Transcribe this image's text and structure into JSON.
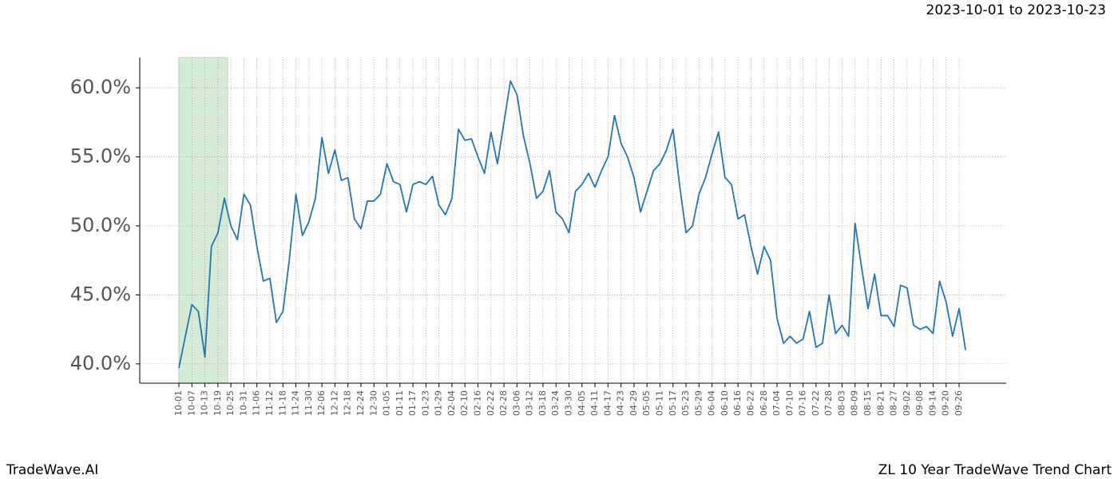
{
  "header": {
    "date_range": "2023-10-01 to 2023-10-23"
  },
  "footer": {
    "brand": "TradeWave.AI",
    "title": "ZL 10 Year TradeWave Trend Chart"
  },
  "chart_data": {
    "type": "line",
    "color": "#1f77b4",
    "grid": true,
    "highlight_range": [
      0,
      8
    ],
    "highlight_color": "#d5ebd5",
    "categories": [
      "10-01",
      null,
      "10-07",
      null,
      "10-13",
      null,
      "10-19",
      null,
      "10-25",
      null,
      "10-31",
      null,
      "11-06",
      null,
      "11-12",
      null,
      "11-18",
      null,
      "11-24",
      null,
      "11-30",
      null,
      "12-06",
      null,
      "12-12",
      null,
      "12-18",
      null,
      "12-24",
      null,
      "12-30",
      null,
      "01-05",
      null,
      "01-11",
      null,
      "01-17",
      null,
      "01-23",
      null,
      "01-29",
      null,
      "02-04",
      null,
      "02-10",
      null,
      "02-16",
      null,
      "02-22",
      null,
      "02-28",
      null,
      "03-06",
      null,
      "03-12",
      null,
      "03-18",
      null,
      "03-24",
      null,
      "03-30",
      null,
      "04-05",
      null,
      "04-11",
      null,
      "04-17",
      null,
      "04-23",
      null,
      "04-29",
      null,
      "05-05",
      null,
      "05-11",
      null,
      "05-17",
      null,
      "05-23",
      null,
      "05-29",
      null,
      "06-04",
      null,
      "06-10",
      null,
      "06-16",
      null,
      "06-22",
      null,
      "06-28",
      null,
      "07-04",
      null,
      "07-10",
      null,
      "07-16",
      null,
      "07-22",
      null,
      "07-28",
      null,
      "08-03",
      null,
      "08-09",
      null,
      "08-15",
      null,
      "08-21",
      null,
      "08-27",
      null,
      "09-02",
      null,
      "09-08",
      null,
      "09-14",
      null,
      "09-20",
      null,
      "09-26",
      null
    ],
    "values": [
      39.7,
      42,
      44.3,
      43.8,
      40.5,
      48.5,
      49.5,
      52,
      50,
      49,
      52.3,
      51.5,
      48.5,
      46,
      46.2,
      43,
      43.8,
      47.6,
      52.3,
      49.3,
      50.3,
      52,
      56.4,
      53.8,
      55.5,
      53.3,
      53.5,
      50.5,
      49.8,
      51.8,
      51.8,
      52.3,
      54.5,
      53.2,
      53,
      51,
      53,
      53.2,
      53,
      53.6,
      51.5,
      50.8,
      52,
      57,
      56.2,
      56.3,
      55,
      53.8,
      56.8,
      54.5,
      57.5,
      60.5,
      59.5,
      56.5,
      54.5,
      52,
      52.5,
      54,
      51,
      50.5,
      49.5,
      52.5,
      53,
      53.8,
      52.8,
      54,
      55,
      58,
      56,
      55,
      53.5,
      51,
      52.5,
      54,
      54.5,
      55.5,
      57,
      53,
      49.5,
      50,
      52.3,
      53.5,
      55.2,
      56.8,
      53.5,
      53,
      50.5,
      50.8,
      48.5,
      46.5,
      48.5,
      47.5,
      43.3,
      41.5,
      42,
      41.5,
      41.8,
      43.8,
      41.2,
      41.5,
      45,
      42.2,
      42.8,
      42,
      50.2,
      47,
      44,
      46.5,
      43.5,
      43.5,
      42.7,
      45.7,
      45.5,
      42.8,
      42.5,
      42.7,
      42.2,
      46,
      44.5,
      42,
      44,
      41
    ],
    "ylim": [
      38.6,
      62.2
    ],
    "yticks": [
      {
        "value": 40,
        "label": "40.0%"
      },
      {
        "value": 45,
        "label": "45.0%"
      },
      {
        "value": 50,
        "label": "50.0%"
      },
      {
        "value": 55,
        "label": "55.0%"
      },
      {
        "value": 60,
        "label": "60.0%"
      }
    ]
  }
}
